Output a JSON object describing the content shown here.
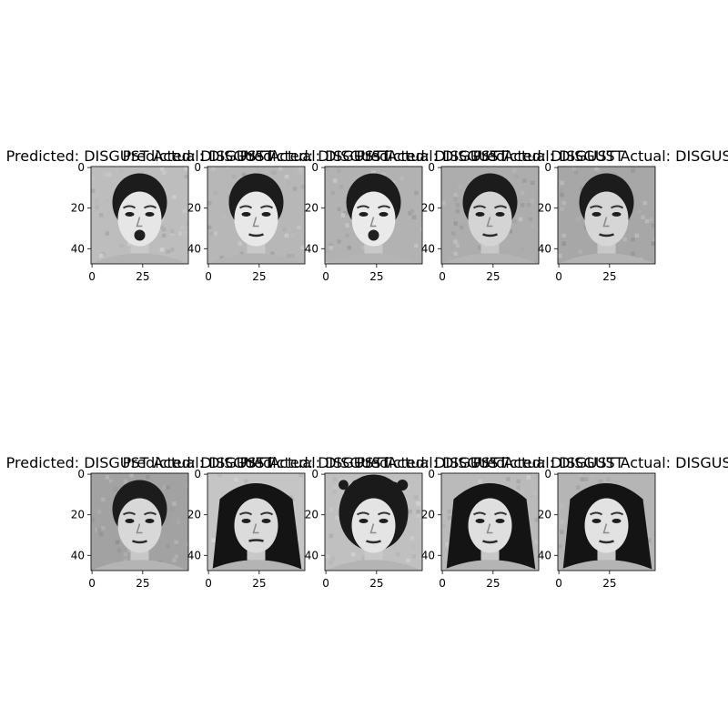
{
  "figure": {
    "background": "#ffffff"
  },
  "chart_data": {
    "type": "image-grid",
    "rows": 2,
    "cols": 5,
    "image_shape": [
      48,
      48
    ],
    "colormap": "gray",
    "xticks": [
      0,
      25
    ],
    "yticks": [
      0,
      20,
      40
    ],
    "panels": [
      {
        "title": "Predicted: DISGUST Actual: DISGUST",
        "subject": "face-1-lips-parted"
      },
      {
        "title": "Predicted: DISGUST Actual: DISGUST",
        "subject": "face-2"
      },
      {
        "title": "Predicted: DISGUST Actual: DISGUST",
        "subject": "face-3-mouth-open"
      },
      {
        "title": "Predicted: DISGUST Actual: DISGUST",
        "subject": "face-4"
      },
      {
        "title": "Predicted: DISGUST Actual: DISGUST",
        "subject": "face-5"
      },
      {
        "title": "Predicted: DISGUST Actual: DISGUST",
        "subject": "face-6"
      },
      {
        "title": "Predicted: DISGUST Actual: DISGUST",
        "subject": "face-7-long-hair"
      },
      {
        "title": "Predicted: DISGUST Actual: DISGUST",
        "subject": "face-8-messy-hair"
      },
      {
        "title": "Predicted: DISGUST Actual: DISGUST",
        "subject": "face-9-long-hair"
      },
      {
        "title": "Predicted: DISGUST Actual: DISGUST",
        "subject": "face-10-long-hair"
      }
    ]
  }
}
